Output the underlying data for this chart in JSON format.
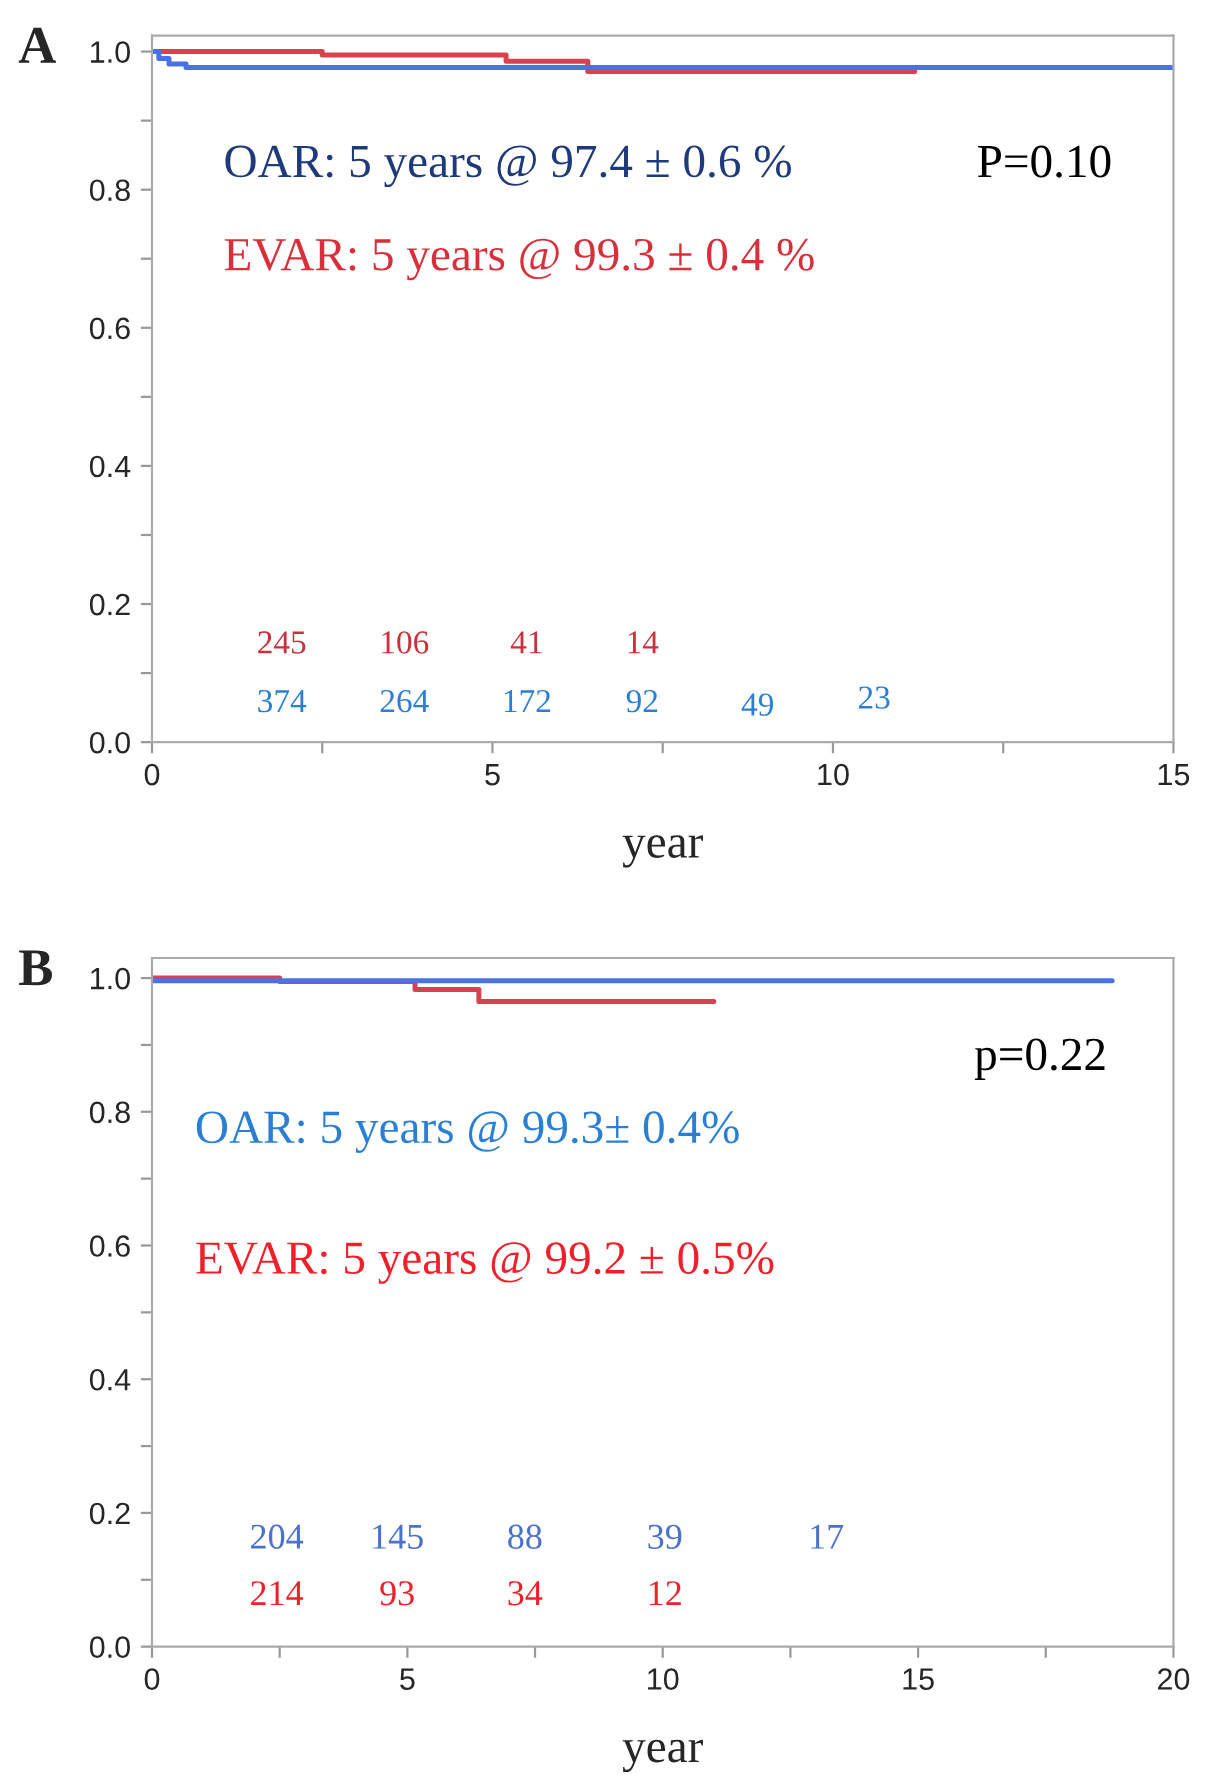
{
  "chart_data": [
    {
      "type": "step",
      "title": "A",
      "xlabel": "year",
      "xlim": [
        0,
        15
      ],
      "ylim": [
        0,
        1.023
      ],
      "xticks": [
        0,
        {
          "value": 2.5,
          "label": null
        },
        5,
        {
          "value": 7.5,
          "label": null
        },
        10,
        {
          "value": 12.5,
          "label": null
        },
        15
      ],
      "yticks": [
        {
          "value": 0,
          "label": "0.0"
        },
        {
          "value": 0.1,
          "label": null
        },
        0.2,
        {
          "value": 0.3,
          "label": null
        },
        0.4,
        {
          "value": 0.5,
          "label": null
        },
        0.6,
        {
          "value": 0.7,
          "label": null
        },
        0.8,
        {
          "value": 0.9,
          "label": null
        },
        {
          "value": 1.0,
          "label": "1.0"
        }
      ],
      "grid": false,
      "series": [
        {
          "color": "#d8414f",
          "x": [
            0,
            2.5,
            5.2,
            6.4,
            11.2
          ],
          "values": [
            1.0,
            0.995,
            0.986,
            0.971,
            0.971
          ]
        },
        {
          "color": "#4a72e4",
          "x": [
            0,
            0.1,
            0.25,
            0.5,
            15
          ],
          "values": [
            1.0,
            0.99,
            0.982,
            0.977,
            0.977
          ]
        }
      ],
      "annotations": [
        "OAR: 5 years @ 97.4 ± 0.6 %",
        "EVAR: 5 years @ 99.3 ± 0.4 %",
        "P=0.10",
        "245",
        "106",
        "41",
        "14",
        "374",
        "264",
        "172",
        "92",
        "49",
        "23"
      ]
    },
    {
      "type": "step",
      "title": "B",
      "xlabel": "year",
      "xlim": [
        0,
        20
      ],
      "ylim": [
        0,
        1.03
      ],
      "xticks": [
        0,
        {
          "value": 2.5,
          "label": null
        },
        5,
        {
          "value": 7.5,
          "label": null
        },
        10,
        {
          "value": 12.5,
          "label": null
        },
        15,
        {
          "value": 17.5,
          "label": null
        },
        20
      ],
      "yticks": [
        {
          "value": 0,
          "label": "0.0"
        },
        {
          "value": 0.1,
          "label": null
        },
        0.2,
        {
          "value": 0.3,
          "label": null
        },
        0.4,
        {
          "value": 0.5,
          "label": null
        },
        0.6,
        {
          "value": 0.7,
          "label": null
        },
        0.8,
        {
          "value": 0.9,
          "label": null
        },
        {
          "value": 1.0,
          "label": "1.0"
        }
      ],
      "grid": false,
      "series": [
        {
          "color": "#d8414f",
          "x": [
            0,
            2.5,
            5.15,
            6.4,
            11.0
          ],
          "values": [
            1.0,
            0.995,
            0.983,
            0.965,
            0.965
          ]
        },
        {
          "color": "#4a72e4",
          "x": [
            0,
            18.8
          ],
          "values": [
            0.996,
            0.996
          ]
        }
      ],
      "annotations": [
        "OAR: 5 years @ 99.3± 0.4%",
        "EVAR: 5 years @ 99.2 ± 0.5%",
        "p=0.22",
        "204",
        "145",
        "88",
        "39",
        "17",
        "214",
        "93",
        "34",
        "12"
      ]
    }
  ]
}
